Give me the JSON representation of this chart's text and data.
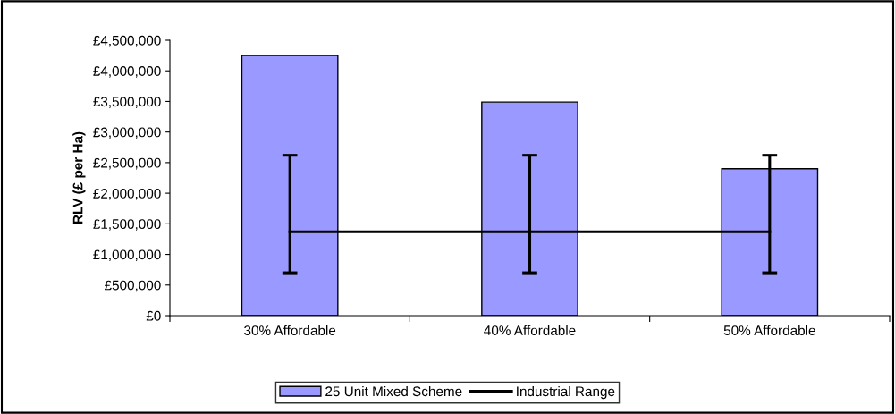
{
  "chart_data": {
    "type": "bar",
    "ylabel": "RLV (£ per Ha)",
    "categories": [
      "30% Affordable",
      "40% Affordable",
      "50% Affordable"
    ],
    "series": [
      {
        "name": "25 Unit Mixed Scheme",
        "color": "#9999ff",
        "values": [
          4250000,
          3490000,
          2400000
        ]
      },
      {
        "name": "Industrial Range",
        "type": "line",
        "color": "#000000",
        "values": [
          1370000,
          1370000,
          1370000
        ],
        "errors": [
          [
            700000,
            2620000
          ],
          [
            700000,
            2620000
          ],
          [
            700000,
            2620000
          ]
        ]
      }
    ],
    "ylim": [
      0,
      4500000
    ],
    "yticks": [
      {
        "value": 0,
        "label": "£0"
      },
      {
        "value": 500000,
        "label": "£500,000"
      },
      {
        "value": 1000000,
        "label": "£1,000,000"
      },
      {
        "value": 1500000,
        "label": "£1,500,000"
      },
      {
        "value": 2000000,
        "label": "£2,000,000"
      },
      {
        "value": 2500000,
        "label": "£2,500,000"
      },
      {
        "value": 3000000,
        "label": "£3,000,000"
      },
      {
        "value": 3500000,
        "label": "£3,500,000"
      },
      {
        "value": 4000000,
        "label": "£4,000,000"
      },
      {
        "value": 4500000,
        "label": "£4,500,000"
      }
    ],
    "grid": false,
    "legend": "bottom",
    "marker": "none",
    "line_style": "solid"
  }
}
